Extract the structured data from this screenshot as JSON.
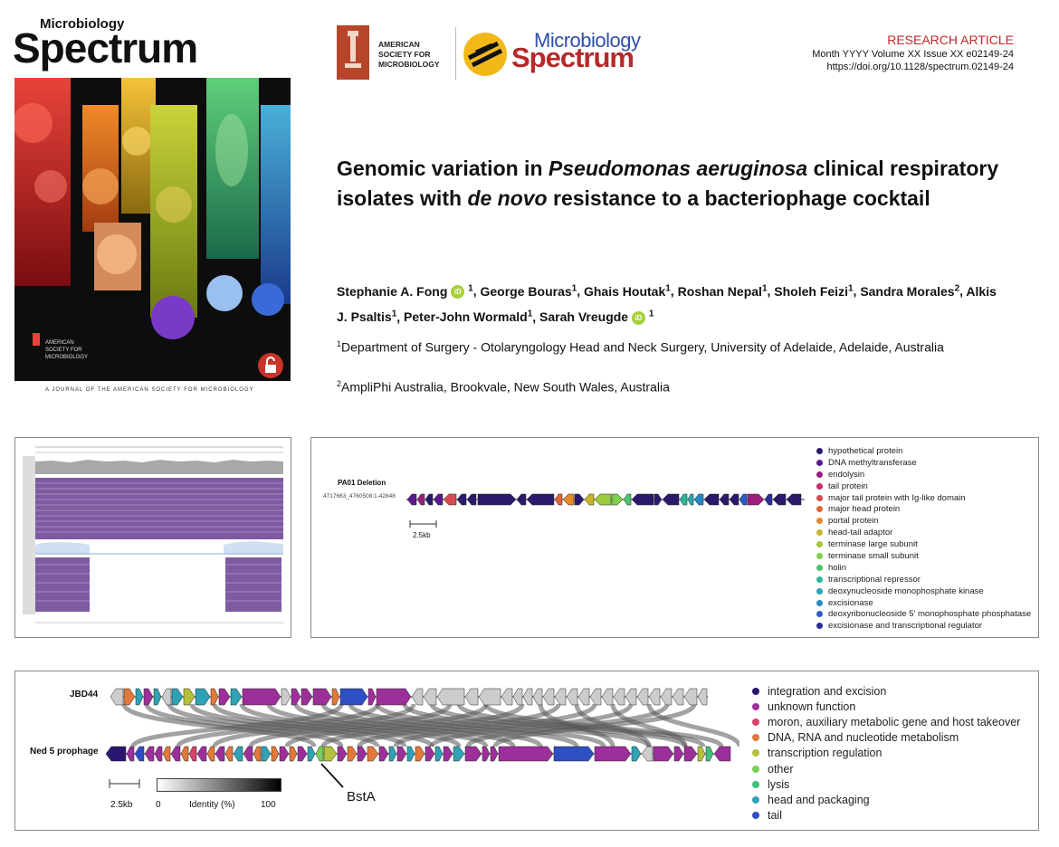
{
  "cover": {
    "title_small": "Microbiology",
    "title_big": "Spectrum",
    "society_lines": [
      "AMERICAN",
      "SOCIETY FOR",
      "MICROBIOLOGY"
    ],
    "footer": "A JOURNAL OF THE AMERICAN SOCIETY FOR MICROBIOLOGY"
  },
  "header": {
    "asm_lines": [
      "AMERICAN",
      "SOCIETY FOR",
      "MICROBIOLOGY"
    ],
    "spectrum_top": "Microbiology",
    "spectrum_bottom": "Spectrum",
    "article_type": "RESEARCH ARTICLE",
    "issue": "Month YYYY Volume XX Issue XX  e02149-24",
    "doi": "https://doi.org/10.1128/spectrum.02149-24"
  },
  "article": {
    "title_part1": "Genomic variation in ",
    "title_italic1": "Pseudomonas aeruginosa",
    "title_part2": " clinical respiratory isolates with ",
    "title_italic2": "de novo",
    "title_part3": " resistance to a bacteriophage cocktail",
    "authors": [
      {
        "name": "Stephanie A. Fong",
        "aff": "1",
        "orcid": true
      },
      {
        "name": "George Bouras",
        "aff": "1",
        "orcid": false
      },
      {
        "name": "Ghais Houtak",
        "aff": "1",
        "orcid": false
      },
      {
        "name": "Roshan Nepal",
        "aff": "1",
        "orcid": false
      },
      {
        "name": "Sholeh Feizi",
        "aff": "1",
        "orcid": false
      },
      {
        "name": "Sandra Morales",
        "aff": "2",
        "orcid": false
      },
      {
        "name": "Alkis J. Psaltis",
        "aff": "1",
        "orcid": false
      },
      {
        "name": "Peter-John Wormald",
        "aff": "1",
        "orcid": false
      },
      {
        "name": "Sarah Vreugde",
        "aff": "1",
        "orcid": true
      }
    ],
    "orcid_label": "iD",
    "affiliation1_num": "1",
    "affiliation1": "Department of Surgery - Otolaryngology Head and Neck Surgery, University of Adelaide, Adelaide, Australia",
    "affiliation2_num": "2",
    "affiliation2": "AmpliPhi Australia, Brookvale, New South Wales, Australia"
  },
  "pa01": {
    "label": "PA01 Deletion",
    "coords": "4717663_4760508:1-42848",
    "scale": "2.5kb",
    "legend": [
      {
        "label": "hypothetical protein",
        "color": "#2b1a6b"
      },
      {
        "label": "DNA methyltransferase",
        "color": "#5b1a8a"
      },
      {
        "label": "endolysin",
        "color": "#9b1f7e"
      },
      {
        "label": "tail protein",
        "color": "#c72a6a"
      },
      {
        "label": "major tail protein with Ig-like domain",
        "color": "#d84a52"
      },
      {
        "label": "major head protein",
        "color": "#e0643a"
      },
      {
        "label": "portal protein",
        "color": "#e28a2a"
      },
      {
        "label": "head-tail adaptor",
        "color": "#c9b52a"
      },
      {
        "label": "terminase large subunit",
        "color": "#9ccb3a"
      },
      {
        "label": "terminase small subunit",
        "color": "#7fd04a"
      },
      {
        "label": "holin",
        "color": "#4ec46a"
      },
      {
        "label": "transcriptional repressor",
        "color": "#2fb59a"
      },
      {
        "label": "deoxynucleoside monophosphate kinase",
        "color": "#2aa6b4"
      },
      {
        "label": "excisionase",
        "color": "#2a86c2"
      },
      {
        "label": "deoxyribonucleoside 5' monophosphate phosphatase",
        "color": "#2a5ec6"
      },
      {
        "label": "excisionase and transcriptional regulator",
        "color": "#2a2f9a"
      }
    ]
  },
  "comparison": {
    "top_label": "JBD44",
    "bottom_label": "Ned 5 prophage",
    "scale": "2.5kb",
    "identity_min": "0",
    "identity_label": "Identity (%)",
    "identity_max": "100",
    "annotation": "BstA",
    "legend": [
      {
        "label": "integration and excision",
        "color": "#2a1670"
      },
      {
        "label": "unknown function",
        "color": "#9c2f9a"
      },
      {
        "label": "moron, auxiliary metabolic gene and host takeover",
        "color": "#d8436a"
      },
      {
        "label": "DNA, RNA and nucleotide metabolism",
        "color": "#e2783a"
      },
      {
        "label": "transcription regulation",
        "color": "#b5c13a"
      },
      {
        "label": "other",
        "color": "#78d052"
      },
      {
        "label": "lysis",
        "color": "#3fc07a"
      },
      {
        "label": "head and packaging",
        "color": "#2fa2b4"
      },
      {
        "label": "tail",
        "color": "#2e4fc2"
      }
    ]
  }
}
